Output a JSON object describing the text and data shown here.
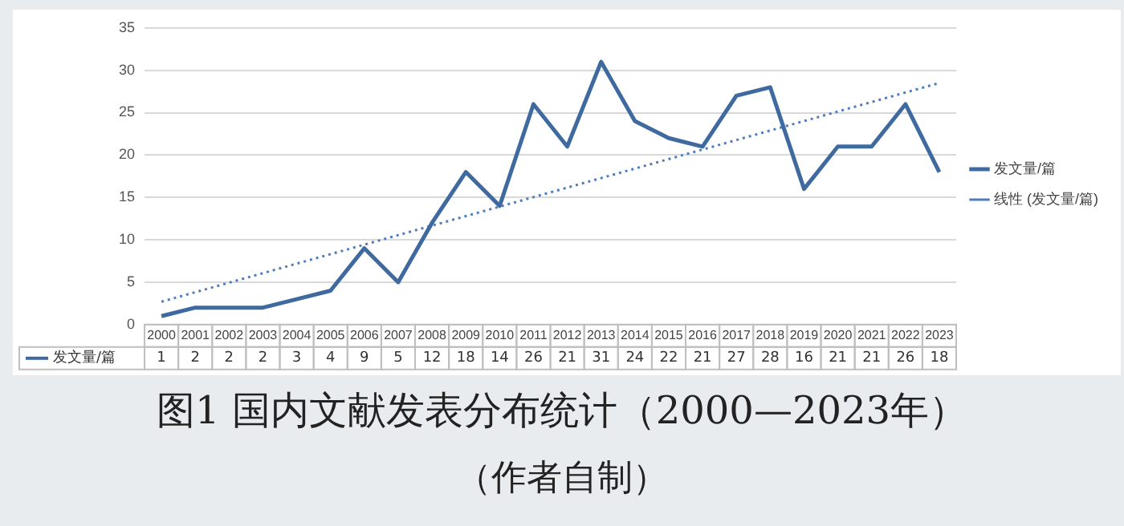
{
  "chart_data": {
    "type": "line",
    "title": "图1 国内文献发表分布统计（2000—2023年）",
    "subtitle": "（作者自制）",
    "categories": [
      "2000",
      "2001",
      "2002",
      "2003",
      "2004",
      "2005",
      "2006",
      "2007",
      "2008",
      "2009",
      "2010",
      "2011",
      "2012",
      "2013",
      "2014",
      "2015",
      "2016",
      "2017",
      "2018",
      "2019",
      "2020",
      "2021",
      "2022",
      "2023"
    ],
    "series": [
      {
        "name": "发文量/篇",
        "color": "#3f6aa0",
        "values": [
          1,
          2,
          2,
          2,
          3,
          4,
          9,
          5,
          12,
          18,
          14,
          26,
          21,
          31,
          24,
          22,
          21,
          27,
          28,
          16,
          21,
          21,
          26,
          18
        ],
        "value_labels": [
          "1",
          "2",
          "2",
          "2",
          "3",
          "4",
          "9",
          "5",
          "12",
          "18",
          "14",
          "26",
          "21",
          "31",
          "24",
          "22",
          "21",
          "27",
          "28",
          "16",
          "21",
          "21",
          "26",
          "18"
        ]
      },
      {
        "name": "线性 (发文量/篇)",
        "color": "#4f7cbf",
        "line_style": "dotted",
        "values": [
          2.7,
          null,
          null,
          null,
          null,
          null,
          null,
          null,
          null,
          null,
          null,
          null,
          null,
          null,
          null,
          null,
          null,
          null,
          null,
          null,
          null,
          null,
          null,
          28.5
        ]
      }
    ],
    "ylim": [
      0,
      35
    ],
    "yticks": [
      0,
      5,
      10,
      15,
      20,
      25,
      30,
      35
    ],
    "grid": "y",
    "legend": "right",
    "marker": "none"
  }
}
